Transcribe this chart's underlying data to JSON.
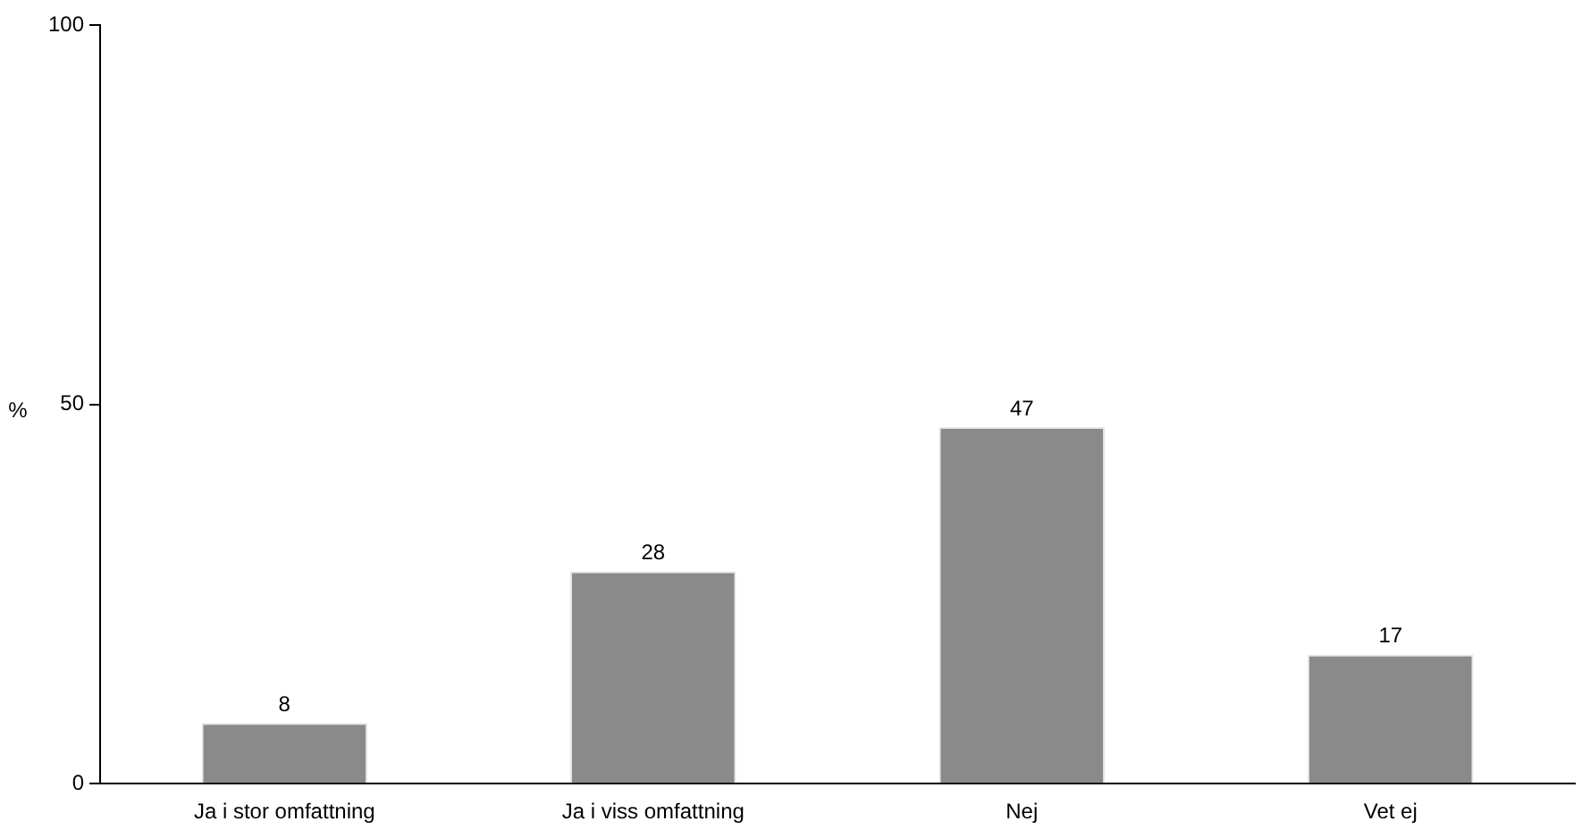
{
  "chart_data": {
    "type": "bar",
    "ylabel": "%",
    "categories": [
      "Ja i stor omfattning",
      "Ja i viss omfattning",
      "Nej",
      "Vet ej"
    ],
    "values": [
      8,
      28,
      47,
      17
    ],
    "color": "#8a8a8a",
    "ylim": [
      0,
      100
    ],
    "yticks": [
      0,
      50,
      100
    ],
    "grid": false,
    "legend": false,
    "data_labels": true
  }
}
